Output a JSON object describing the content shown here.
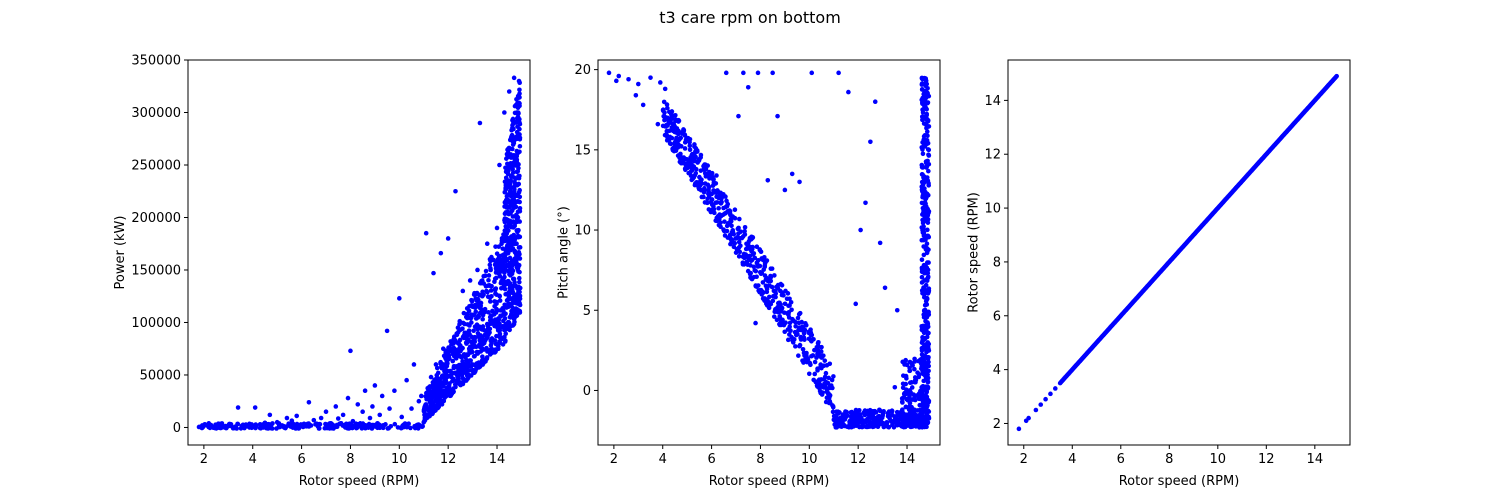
{
  "figure": {
    "title": "t3 care rpm on bottom",
    "marker_color": "#0000ff"
  },
  "chart_data": [
    {
      "type": "scatter",
      "xlabel": "Rotor speed (RPM)",
      "ylabel": "Power (kW)",
      "xlim": [
        1.35,
        15.35
      ],
      "ylim": [
        -16700,
        350000
      ],
      "xticks": [
        2,
        4,
        6,
        8,
        10,
        12,
        14
      ],
      "yticks": [
        0,
        50000,
        100000,
        150000,
        200000,
        250000,
        300000,
        350000
      ],
      "points": [
        [
          1.8,
          500
        ],
        [
          2.2,
          300
        ],
        [
          2.6,
          800
        ],
        [
          3.0,
          1500
        ],
        [
          3.1,
          2800
        ],
        [
          3.3,
          900
        ],
        [
          3.4,
          19000
        ],
        [
          3.6,
          2500
        ],
        [
          3.9,
          1800
        ],
        [
          4.1,
          19000
        ],
        [
          4.3,
          3000
        ],
        [
          4.5,
          4500
        ],
        [
          4.7,
          12000
        ],
        [
          5.0,
          5000
        ],
        [
          5.2,
          2000
        ],
        [
          5.4,
          9000
        ],
        [
          5.6,
          6500
        ],
        [
          5.8,
          11000
        ],
        [
          6.1,
          3500
        ],
        [
          6.3,
          24000
        ],
        [
          6.5,
          7000
        ],
        [
          6.8,
          9000
        ],
        [
          7.0,
          15000
        ],
        [
          7.2,
          4000
        ],
        [
          7.4,
          20000
        ],
        [
          7.5,
          8500
        ],
        [
          7.7,
          12000
        ],
        [
          7.9,
          28000
        ],
        [
          8.0,
          73000
        ],
        [
          8.1,
          6000
        ],
        [
          8.3,
          22000
        ],
        [
          8.5,
          15000
        ],
        [
          8.6,
          35000
        ],
        [
          8.8,
          9000
        ],
        [
          8.9,
          20000
        ],
        [
          9.0,
          40000
        ],
        [
          9.2,
          12000
        ],
        [
          9.3,
          30000
        ],
        [
          9.5,
          92000
        ],
        [
          9.6,
          18000
        ],
        [
          9.8,
          35000
        ],
        [
          10.0,
          123000
        ],
        [
          10.1,
          10000
        ],
        [
          10.3,
          45000
        ],
        [
          10.5,
          18000
        ],
        [
          10.6,
          60000
        ],
        [
          10.8,
          25000
        ],
        [
          10.9,
          30000
        ],
        [
          11.0,
          5000
        ],
        [
          11.1,
          185000
        ],
        [
          11.2,
          38000
        ],
        [
          11.3,
          48000
        ],
        [
          11.4,
          147000
        ],
        [
          11.5,
          60000
        ],
        [
          11.6,
          32000
        ],
        [
          11.7,
          166000
        ],
        [
          11.8,
          75000
        ],
        [
          11.9,
          55000
        ],
        [
          12.0,
          180000
        ],
        [
          12.1,
          82000
        ],
        [
          12.2,
          70000
        ],
        [
          12.3,
          225000
        ],
        [
          12.4,
          95000
        ],
        [
          12.5,
          78000
        ],
        [
          12.6,
          130000
        ],
        [
          12.7,
          90000
        ],
        [
          12.8,
          105000
        ],
        [
          12.9,
          140000
        ],
        [
          13.0,
          115000
        ],
        [
          13.1,
          96000
        ],
        [
          13.2,
          150000
        ],
        [
          13.3,
          290000
        ],
        [
          13.4,
          125000
        ],
        [
          13.5,
          110000
        ],
        [
          13.6,
          175000
        ],
        [
          13.7,
          135000
        ],
        [
          13.8,
          160000
        ],
        [
          13.9,
          120000
        ],
        [
          14.0,
          190000
        ],
        [
          14.1,
          250000
        ],
        [
          14.2,
          155000
        ],
        [
          14.3,
          300000
        ],
        [
          14.4,
          180000
        ],
        [
          14.5,
          320000
        ],
        [
          14.6,
          240000
        ],
        [
          14.7,
          333000
        ],
        [
          14.8,
          200000
        ],
        [
          14.9,
          330000
        ]
      ],
      "bands": [
        {
          "x_from": 1.8,
          "x_to": 11.0,
          "y_low": -1000,
          "y_high": 4000,
          "n": 260
        },
        {
          "x_from": 11.0,
          "x_to": 14.3,
          "y_low_from": 5000,
          "y_low_to": 80000,
          "y_high_from": 30000,
          "y_high_to": 190000,
          "n": 700
        },
        {
          "x_from": 14.3,
          "x_to": 14.95,
          "y_low_from": 80000,
          "y_low_to": 110000,
          "y_high_from": 250000,
          "y_high_to": 334000,
          "n": 450
        }
      ]
    },
    {
      "type": "scatter",
      "xlabel": "Rotor speed (RPM)",
      "ylabel": "Pitch angle (°)",
      "xlim": [
        1.35,
        15.35
      ],
      "ylim": [
        -3.4,
        20.6
      ],
      "xticks": [
        2,
        4,
        6,
        8,
        10,
        12,
        14
      ],
      "yticks": [
        0,
        5,
        10,
        15,
        20
      ],
      "points": [
        [
          1.8,
          19.8
        ],
        [
          2.1,
          19.3
        ],
        [
          2.2,
          19.6
        ],
        [
          2.6,
          19.4
        ],
        [
          2.9,
          18.4
        ],
        [
          3.0,
          19.1
        ],
        [
          3.2,
          17.8
        ],
        [
          3.5,
          19.5
        ],
        [
          3.8,
          16.6
        ],
        [
          3.9,
          19.2
        ],
        [
          4.1,
          18.8
        ],
        [
          4.2,
          17.0
        ],
        [
          4.7,
          15.7
        ],
        [
          5.5,
          13.3
        ],
        [
          6.2,
          13.4
        ],
        [
          6.6,
          19.8
        ],
        [
          7.1,
          17.1
        ],
        [
          7.3,
          19.8
        ],
        [
          7.5,
          18.9
        ],
        [
          7.9,
          19.8
        ],
        [
          7.8,
          4.2
        ],
        [
          8.3,
          13.1
        ],
        [
          8.5,
          19.8
        ],
        [
          8.7,
          17.1
        ],
        [
          9.0,
          12.5
        ],
        [
          9.3,
          13.5
        ],
        [
          9.6,
          13.0
        ],
        [
          10.1,
          19.8
        ],
        [
          10.5,
          2.7
        ],
        [
          11.2,
          19.8
        ],
        [
          11.6,
          18.6
        ],
        [
          11.9,
          5.4
        ],
        [
          12.1,
          10.0
        ],
        [
          12.3,
          11.7
        ],
        [
          12.5,
          15.5
        ],
        [
          12.7,
          18.0
        ],
        [
          12.9,
          9.2
        ],
        [
          13.1,
          6.4
        ],
        [
          13.5,
          0.2
        ],
        [
          13.6,
          5.0
        ],
        [
          13.8,
          -0.5
        ],
        [
          14.1,
          -0.4
        ],
        [
          14.3,
          -1.2
        ],
        [
          14.5,
          1.0
        ],
        [
          14.6,
          4.0
        ],
        [
          14.7,
          6.0
        ]
      ],
      "bands": [
        {
          "x_from": 4.0,
          "x_to": 11.0,
          "y_low_from": 16.0,
          "y_low_to": -1.5,
          "y_high_from": 18.5,
          "y_high_to": 1.5,
          "n": 650
        },
        {
          "x_from": 11.0,
          "x_to": 14.7,
          "y_low": -2.3,
          "y_high": -1.2,
          "n": 300
        },
        {
          "x_from": 14.6,
          "x_to": 14.9,
          "y_low": -2.3,
          "y_high": 19.5,
          "n": 400
        },
        {
          "x_from": 13.8,
          "x_to": 14.7,
          "y_low": -2.3,
          "y_high": 2.0,
          "n": 120
        }
      ]
    },
    {
      "type": "scatter",
      "xlabel": "Rotor speed (RPM)",
      "ylabel": "Rotor speed (RPM)",
      "xlim": [
        1.35,
        15.45
      ],
      "ylim": [
        1.2,
        15.5
      ],
      "xticks": [
        2,
        4,
        6,
        8,
        10,
        12,
        14
      ],
      "yticks": [
        2,
        4,
        6,
        8,
        10,
        12,
        14
      ],
      "points": [
        [
          1.8,
          1.8
        ],
        [
          2.1,
          2.1
        ],
        [
          2.2,
          2.2
        ],
        [
          2.5,
          2.5
        ],
        [
          2.7,
          2.7
        ],
        [
          2.9,
          2.9
        ],
        [
          3.1,
          3.1
        ],
        [
          3.3,
          3.3
        ]
      ],
      "line_points": {
        "x_from": 3.5,
        "x_to": 14.9,
        "n": 320
      }
    }
  ]
}
